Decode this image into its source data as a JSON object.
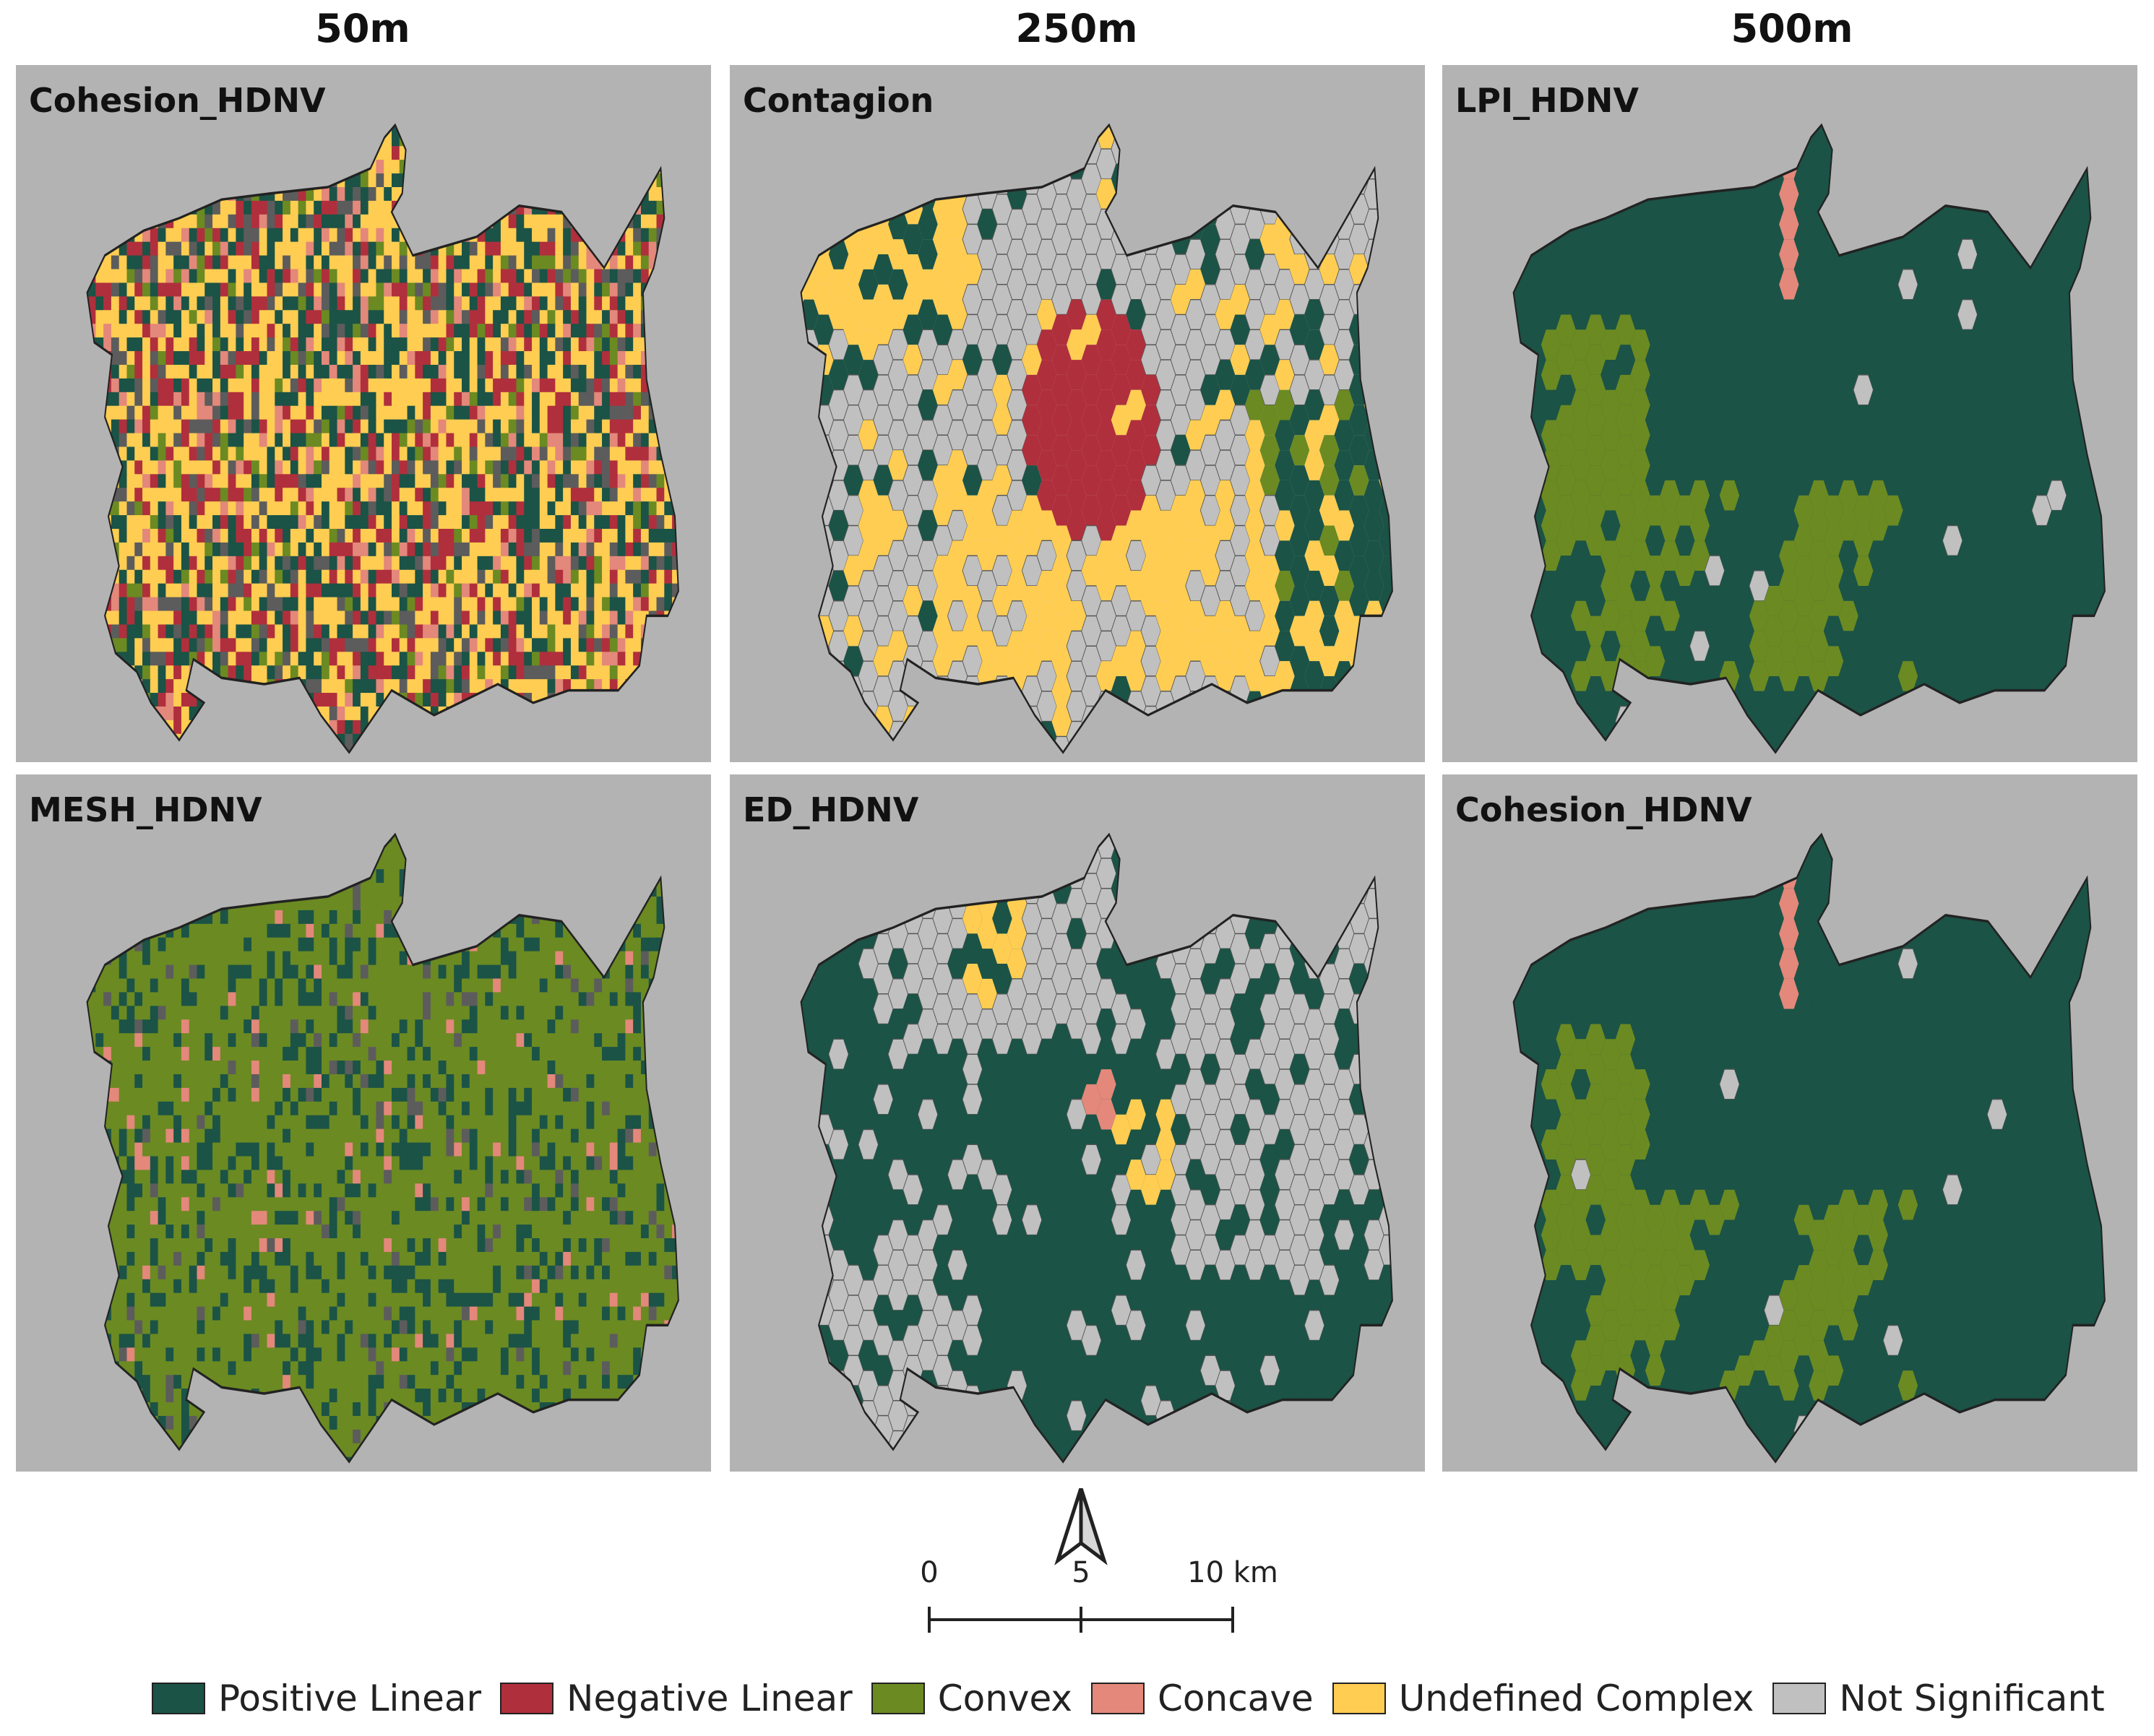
{
  "column_titles": [
    "50m",
    "250m",
    "500m"
  ],
  "panels": [
    {
      "label": "Cohesion_HDNV",
      "pattern": "mixed"
    },
    {
      "label": "Contagion",
      "pattern": "hex_mixed"
    },
    {
      "label": "LPI_HDNV",
      "pattern": "hex_positive"
    },
    {
      "label": "MESH_HDNV",
      "pattern": "convex"
    },
    {
      "label": "ED_HDNV",
      "pattern": "hex_positive_gray"
    },
    {
      "label": "Cohesion_HDNV",
      "pattern": "hex_positive"
    }
  ],
  "scale_bar": {
    "labels": [
      "0",
      "5",
      "10 km"
    ]
  },
  "legend": [
    {
      "label": "Positive Linear",
      "color": "#1b5346"
    },
    {
      "label": "Negative Linear",
      "color": "#b02f3c"
    },
    {
      "label": "Convex",
      "color": "#6b8a22"
    },
    {
      "label": "Concave",
      "color": "#e3887a"
    },
    {
      "label": "Undefined Complex",
      "color": "#ffcd52"
    },
    {
      "label": "Not Significant",
      "color": "#c0c0c0"
    }
  ],
  "colors": {
    "panel_bg": "#b3b3b3",
    "positive": "#1b5346",
    "negative": "#b02f3c",
    "convex": "#6b8a22",
    "concave": "#e3887a",
    "undefined": "#ffcd52",
    "not_significant": "#c0c0c0",
    "dark_gray": "#5c5c5c"
  }
}
